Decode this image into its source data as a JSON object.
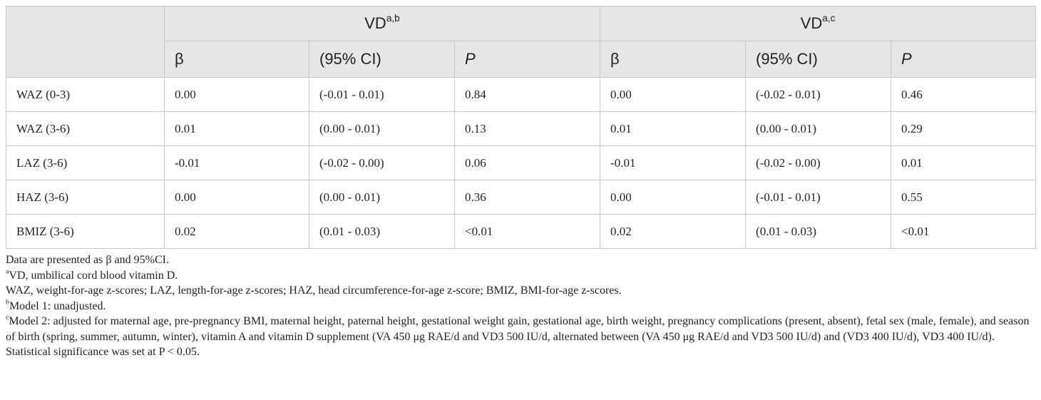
{
  "header": {
    "groups": [
      {
        "text": "VD",
        "sup": "a,b"
      },
      {
        "text": "VD",
        "sup": "a,c"
      }
    ],
    "columns": [
      "β",
      "(95% CI)",
      "P",
      "β",
      "(95% CI)",
      "P"
    ]
  },
  "table": {
    "rows": [
      [
        "WAZ (0-3)",
        "0.00",
        "(-0.01 - 0.01)",
        "0.84",
        "0.00",
        "(-0.02 - 0.01)",
        "0.46"
      ],
      [
        "WAZ (3-6)",
        "0.01",
        "(0.00 - 0.01)",
        "0.13",
        "0.01",
        "(0.00 - 0.01)",
        "0.29"
      ],
      [
        "LAZ (3-6)",
        "-0.01",
        "(-0.02 - 0.00)",
        "0.06",
        "-0.01",
        "(-0.02 - 0.00)",
        "0.01"
      ],
      [
        "HAZ (3-6)",
        "0.00",
        "(0.00 - 0.01)",
        "0.36",
        "0.00",
        "(-0.01 - 0.01)",
        "0.55"
      ],
      [
        "BMIZ (3-6)",
        "0.02",
        "(0.01 - 0.03)",
        "<0.01",
        "0.02",
        "(0.01 - 0.03)",
        "<0.01"
      ]
    ]
  },
  "footnotes": [
    {
      "text": "Data are presented as β and 95%CI."
    },
    {
      "sup": "a",
      "text": "VD, umbilical cord blood vitamin D."
    },
    {
      "text": "WAZ, weight-for-age z-scores; LAZ, length-for-age z-scores; HAZ, head circumference-for-age z-score; BMIZ, BMI-for-age z-scores."
    },
    {
      "sup": "b",
      "text": "Model 1: unadjusted."
    },
    {
      "sup": "c",
      "text": "Model 2: adjusted for maternal age, pre-pregnancy BMI, maternal height, paternal height, gestational weight gain, gestational age, birth weight, pregnancy complications (present, absent), fetal sex (male, female), and season of birth (spring, summer, autumn, winter), vitamin A and vitamin D supplement (VA 450 μg RAE/d and VD3 500 IU/d, alternated between (VA 450 μg RAE/d and VD3 500 IU/d) and (VD3 400 IU/d), VD3 400 IU/d)."
    },
    {
      "text": "Statistical significance was set at P < 0.05."
    }
  ]
}
